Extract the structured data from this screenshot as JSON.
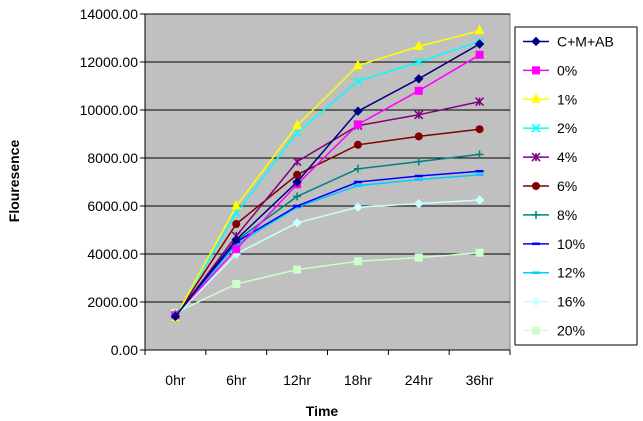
{
  "chart_data": {
    "type": "line",
    "title": "",
    "xlabel": "Time",
    "ylabel": "Flouresence",
    "categories": [
      "0hr",
      "6hr",
      "12hr",
      "18hr",
      "24hr",
      "36hr"
    ],
    "ylim": [
      0,
      14000
    ],
    "yticks": [
      "0.00",
      "2000.00",
      "4000.00",
      "6000.00",
      "8000.00",
      "10000.00",
      "12000.00",
      "14000.00"
    ],
    "ytick_values": [
      0,
      2000,
      4000,
      6000,
      8000,
      10000,
      12000,
      14000
    ],
    "grid": true,
    "legend_position": "right",
    "series": [
      {
        "name": "C+M+AB",
        "color": "#000080",
        "marker": "diamond",
        "values": [
          1400,
          4600,
          7000,
          9950,
          11300,
          12750
        ]
      },
      {
        "name": "0%",
        "color": "#ff00ff",
        "marker": "square",
        "values": [
          1450,
          4200,
          6900,
          9400,
          10800,
          12300
        ]
      },
      {
        "name": "1%",
        "color": "#ffff00",
        "marker": "triangle",
        "values": [
          1350,
          6000,
          9350,
          11850,
          12650,
          13300
        ]
      },
      {
        "name": "2%",
        "color": "#00ffff",
        "marker": "x",
        "values": [
          1400,
          5700,
          9050,
          11200,
          12000,
          12850
        ]
      },
      {
        "name": "4%",
        "color": "#800080",
        "marker": "star",
        "values": [
          1400,
          4750,
          7850,
          9350,
          9800,
          10350
        ]
      },
      {
        "name": "6%",
        "color": "#800000",
        "marker": "circle",
        "values": [
          1400,
          5250,
          7300,
          8550,
          8900,
          9200
        ]
      },
      {
        "name": "8%",
        "color": "#008080",
        "marker": "plus",
        "values": [
          1500,
          4550,
          6400,
          7550,
          7850,
          8150
        ]
      },
      {
        "name": "10%",
        "color": "#0000ff",
        "marker": "dash",
        "values": [
          1450,
          4500,
          6000,
          7000,
          7250,
          7450
        ]
      },
      {
        "name": "12%",
        "color": "#00ccff",
        "marker": "dash",
        "values": [
          1400,
          4400,
          5950,
          6850,
          7100,
          7300
        ]
      },
      {
        "name": "16%",
        "color": "#ccffff",
        "marker": "diamond",
        "values": [
          1400,
          4000,
          5300,
          5950,
          6100,
          6250
        ]
      },
      {
        "name": "20%",
        "color": "#ccffcc",
        "marker": "square",
        "values": [
          1550,
          2750,
          3350,
          3700,
          3850,
          4050
        ]
      }
    ]
  }
}
